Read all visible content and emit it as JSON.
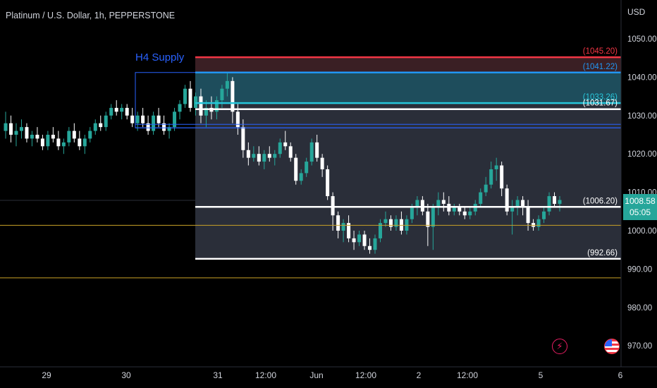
{
  "title": "Platinum / U.S. Dollar, 1h, PEPPERSTONE",
  "currency": "USD",
  "last_price": "1008.58",
  "countdown": "05:05",
  "colors": {
    "up": "#26a69a",
    "down": "#ffffff",
    "supply_border": "#2962ff",
    "supply_label": "#2962ff",
    "zone_fill": "#2a2e39",
    "supply_fill": "#1e4d5c",
    "red_line": "#f23645",
    "blue_line": "#2196f3",
    "cyan_line": "#26c6da",
    "white_line": "#ffffff",
    "yellow_line": "#c9a227",
    "lightning_icon": "#e91e63"
  },
  "annotations": {
    "supply_label": "H4 Supply",
    "levels": [
      {
        "value": 1045.2,
        "label": "(1045.20)",
        "color": "red_line"
      },
      {
        "value": 1041.22,
        "label": "(1041.22)",
        "color": "blue_line"
      },
      {
        "value": 1033.26,
        "label": "(1033.26)",
        "color": "cyan_line"
      },
      {
        "value": 1031.67,
        "label": "(1031.67)",
        "color": "white_line"
      },
      {
        "value": 1006.2,
        "label": "(1006.20)",
        "color": "white_line"
      },
      {
        "value": 992.66,
        "label": "(992.66)",
        "color": "white_line"
      }
    ],
    "yellow_levels": [
      1001.4,
      987.7
    ],
    "thin_blue_levels": [
      1027.7,
      1026.8
    ]
  },
  "chart_data": {
    "type": "candlestick",
    "title": "Platinum / U.S. Dollar, 1h, PEPPERSTONE",
    "ylabel": "USD",
    "ylim": [
      967,
      1057
    ],
    "y_ticks": [
      1050,
      1040,
      1030,
      1020,
      1010,
      1000,
      990,
      980,
      970
    ],
    "x_ticks": [
      "29",
      "30",
      "31",
      "12:00",
      "Jun",
      "12:00",
      "2",
      "12:00",
      "5",
      "6"
    ],
    "ohlc": [
      [
        1026,
        1031,
        1024,
        1028
      ],
      [
        1028,
        1030,
        1023,
        1025
      ],
      [
        1025,
        1028,
        1022,
        1026
      ],
      [
        1026,
        1029,
        1024,
        1027
      ],
      [
        1027,
        1028,
        1023,
        1024
      ],
      [
        1024,
        1026,
        1022,
        1025
      ],
      [
        1025,
        1027,
        1023,
        1024
      ],
      [
        1024,
        1025,
        1021,
        1022
      ],
      [
        1022,
        1026,
        1021,
        1025
      ],
      [
        1025,
        1027,
        1023,
        1024
      ],
      [
        1024,
        1026,
        1021,
        1022
      ],
      [
        1022,
        1024,
        1020,
        1023
      ],
      [
        1023,
        1027,
        1022,
        1026
      ],
      [
        1026,
        1028,
        1023,
        1024
      ],
      [
        1024,
        1026,
        1021,
        1022
      ],
      [
        1022,
        1025,
        1020,
        1024
      ],
      [
        1024,
        1027,
        1023,
        1026
      ],
      [
        1026,
        1029,
        1025,
        1028
      ],
      [
        1028,
        1030,
        1026,
        1027
      ],
      [
        1027,
        1031,
        1026,
        1030
      ],
      [
        1030,
        1033,
        1029,
        1032
      ],
      [
        1032,
        1034,
        1030,
        1031
      ],
      [
        1031,
        1033,
        1029,
        1032
      ],
      [
        1032,
        1033,
        1029,
        1030
      ],
      [
        1030,
        1032,
        1027,
        1028
      ],
      [
        1028,
        1031,
        1026,
        1030
      ],
      [
        1030,
        1032,
        1027,
        1028
      ],
      [
        1028,
        1030,
        1025,
        1026
      ],
      [
        1026,
        1031,
        1025,
        1030
      ],
      [
        1030,
        1032,
        1027,
        1028
      ],
      [
        1028,
        1030,
        1025,
        1026
      ],
      [
        1026,
        1028,
        1024,
        1027
      ],
      [
        1027,
        1032,
        1026,
        1031
      ],
      [
        1031,
        1034,
        1029,
        1033
      ],
      [
        1033,
        1038,
        1032,
        1037
      ],
      [
        1037,
        1039,
        1031,
        1032
      ],
      [
        1032,
        1036,
        1030,
        1035
      ],
      [
        1035,
        1037,
        1028,
        1030
      ],
      [
        1030,
        1034,
        1027,
        1032
      ],
      [
        1032,
        1035,
        1029,
        1031
      ],
      [
        1031,
        1035,
        1029,
        1034
      ],
      [
        1034,
        1038,
        1032,
        1037
      ],
      [
        1037,
        1041,
        1035,
        1039
      ],
      [
        1039,
        1040,
        1028,
        1031
      ],
      [
        1031,
        1033,
        1025,
        1027
      ],
      [
        1027,
        1029,
        1019,
        1021
      ],
      [
        1021,
        1023,
        1017,
        1019
      ],
      [
        1019,
        1022,
        1018,
        1020
      ],
      [
        1020,
        1022,
        1017,
        1018
      ],
      [
        1018,
        1021,
        1016,
        1020
      ],
      [
        1020,
        1022,
        1018,
        1019
      ],
      [
        1019,
        1021,
        1017,
        1020
      ],
      [
        1020,
        1024,
        1019,
        1023
      ],
      [
        1023,
        1026,
        1021,
        1022
      ],
      [
        1022,
        1023,
        1018,
        1019
      ],
      [
        1019,
        1020,
        1012,
        1013
      ],
      [
        1013,
        1016,
        1012,
        1015
      ],
      [
        1015,
        1019,
        1014,
        1018
      ],
      [
        1018,
        1024,
        1017,
        1023
      ],
      [
        1023,
        1025,
        1018,
        1019
      ],
      [
        1019,
        1020,
        1014,
        1016
      ],
      [
        1016,
        1017,
        1008,
        1009
      ],
      [
        1009,
        1010,
        1000,
        1004
      ],
      [
        1004,
        1005,
        998,
        1000
      ],
      [
        1000,
        1003,
        997,
        1002
      ],
      [
        1002,
        1004,
        997,
        998
      ],
      [
        998,
        1000,
        995,
        997
      ],
      [
        997,
        1000,
        996,
        999
      ],
      [
        999,
        1000,
        995,
        996
      ],
      [
        996,
        998,
        994,
        995
      ],
      [
        995,
        999,
        994,
        998
      ],
      [
        998,
        1003,
        997,
        1002
      ],
      [
        1002,
        1005,
        1001,
        1003
      ],
      [
        1003,
        1004,
        1000,
        1001
      ],
      [
        1001,
        1004,
        1000,
        1003
      ],
      [
        1003,
        1005,
        999,
        1000
      ],
      [
        1000,
        1004,
        999,
        1003
      ],
      [
        1003,
        1007,
        1002,
        1006
      ],
      [
        1006,
        1009,
        1004,
        1008
      ],
      [
        1008,
        1009,
        1004,
        1005
      ],
      [
        1005,
        1007,
        996,
        1001
      ],
      [
        1001,
        1007,
        995,
        1006
      ],
      [
        1006,
        1010,
        1004,
        1008
      ],
      [
        1008,
        1010,
        1005,
        1007
      ],
      [
        1007,
        1009,
        1004,
        1005
      ],
      [
        1005,
        1007,
        1004,
        1006
      ],
      [
        1006,
        1007,
        1004,
        1005
      ],
      [
        1005,
        1006,
        1003,
        1004
      ],
      [
        1004,
        1006,
        1003,
        1005
      ],
      [
        1005,
        1008,
        1004,
        1007
      ],
      [
        1007,
        1011,
        1006,
        1010
      ],
      [
        1010,
        1014,
        1009,
        1012
      ],
      [
        1012,
        1018,
        1011,
        1016
      ],
      [
        1016,
        1019,
        1013,
        1017
      ],
      [
        1017,
        1018,
        1009,
        1011
      ],
      [
        1011,
        1012,
        1004,
        1005
      ],
      [
        1005,
        1008,
        999,
        1006
      ],
      [
        1006,
        1009,
        1004,
        1008
      ],
      [
        1008,
        1009,
        1004,
        1006
      ],
      [
        1006,
        1008,
        1000,
        1002
      ],
      [
        1002,
        1003,
        1000,
        1001
      ],
      [
        1001,
        1004,
        1000,
        1003
      ],
      [
        1003,
        1006,
        1002,
        1005
      ],
      [
        1005,
        1010,
        1004,
        1009
      ],
      [
        1009,
        1010,
        1006,
        1007
      ],
      [
        1007,
        1009,
        1005,
        1008
      ]
    ]
  },
  "icons": {
    "lightning": "lightning-icon",
    "flag": "us-flag-icon"
  }
}
